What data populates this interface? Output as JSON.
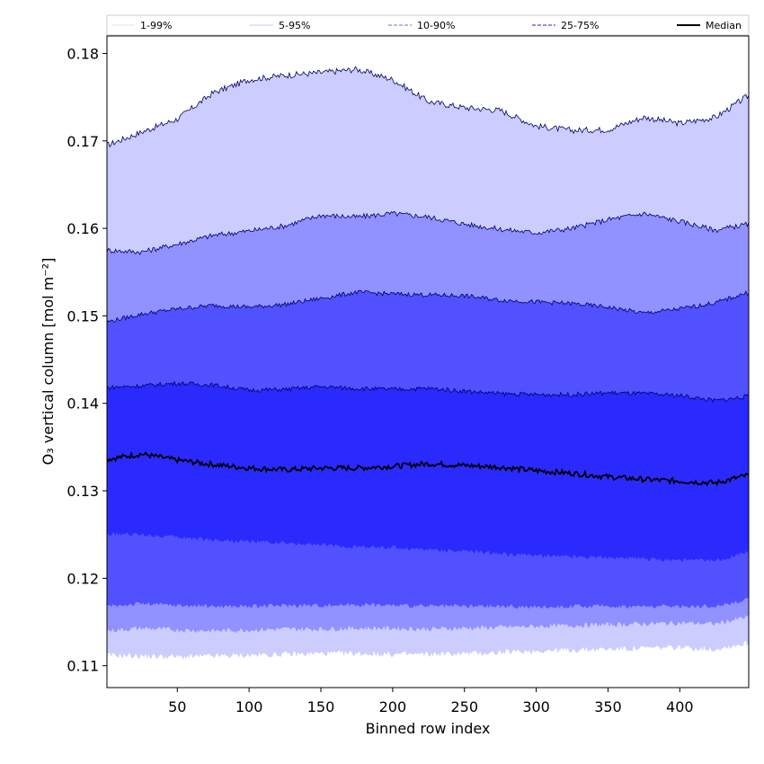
{
  "chart_data": {
    "type": "area",
    "title": "",
    "xlabel": "Binned row index",
    "ylabel": "O₃ vertical column [mol m⁻²]",
    "xlim": [
      1,
      448
    ],
    "ylim": [
      0.1075,
      0.182
    ],
    "xticks": [
      50,
      100,
      150,
      200,
      250,
      300,
      350,
      400
    ],
    "yticks": [
      0.11,
      0.12,
      0.13,
      0.14,
      0.15,
      0.16,
      0.17,
      0.18
    ],
    "grid": false,
    "legend_position": "top",
    "colors": {
      "band_1_99": "#ffffff",
      "band_5_95": "#ccccff",
      "band_10_90": "#9191ff",
      "band_25_75": "#5151ff",
      "band_center": "#2a2aff",
      "median_line": "#000000",
      "boundary_line": "#000066"
    },
    "legend": [
      {
        "name": "1-99%",
        "style": "thin-solid",
        "color": "#dddddd"
      },
      {
        "name": "5-95%",
        "style": "thin-solid",
        "color": "#b5b5e6"
      },
      {
        "name": "10-90%",
        "style": "dashed",
        "color": "#8a8af0"
      },
      {
        "name": "25-75%",
        "style": "dashed",
        "color": "#4b4bd8"
      },
      {
        "name": "Median",
        "style": "solid",
        "color": "#000000"
      }
    ],
    "x": [
      1,
      25,
      50,
      75,
      100,
      125,
      150,
      175,
      200,
      225,
      250,
      275,
      300,
      325,
      350,
      375,
      400,
      425,
      448
    ],
    "series": [
      {
        "name": "1-99%",
        "lower": [
          0.1112,
          0.1111,
          0.111,
          0.1111,
          0.1112,
          0.1113,
          0.1114,
          0.1114,
          0.1113,
          0.1113,
          0.1114,
          0.1115,
          0.1117,
          0.1118,
          0.1119,
          0.112,
          0.1121,
          0.1119,
          0.1126
        ],
        "upper": [
          0.1695,
          0.171,
          0.1725,
          0.1755,
          0.177,
          0.1775,
          0.1778,
          0.1782,
          0.177,
          0.1745,
          0.1738,
          0.1735,
          0.1717,
          0.1712,
          0.1713,
          0.1727,
          0.172,
          0.1727,
          0.1752
        ]
      },
      {
        "name": "5-95%",
        "lower": [
          0.114,
          0.1143,
          0.1141,
          0.114,
          0.1141,
          0.1142,
          0.1142,
          0.1143,
          0.1143,
          0.1142,
          0.1143,
          0.1144,
          0.1145,
          0.1146,
          0.1147,
          0.1148,
          0.1149,
          0.1148,
          0.1156
        ],
        "upper": [
          0.1575,
          0.1573,
          0.1582,
          0.1592,
          0.1597,
          0.1603,
          0.1615,
          0.1613,
          0.1617,
          0.1613,
          0.1605,
          0.1599,
          0.1595,
          0.16,
          0.161,
          0.1617,
          0.1608,
          0.1598,
          0.1605
        ]
      },
      {
        "name": "10-90%",
        "lower": [
          0.1168,
          0.1171,
          0.1169,
          0.1168,
          0.1168,
          0.1169,
          0.1169,
          0.117,
          0.1169,
          0.1168,
          0.1168,
          0.1168,
          0.1167,
          0.1168,
          0.1168,
          0.1168,
          0.1168,
          0.1168,
          0.1176
        ],
        "upper": [
          0.1493,
          0.1502,
          0.1508,
          0.1512,
          0.151,
          0.1513,
          0.152,
          0.1527,
          0.1525,
          0.1524,
          0.1523,
          0.1518,
          0.1516,
          0.1514,
          0.151,
          0.1503,
          0.1508,
          0.1515,
          0.1527
        ]
      },
      {
        "name": "25-75%",
        "lower": [
          0.125,
          0.125,
          0.1247,
          0.1244,
          0.1242,
          0.124,
          0.1238,
          0.1236,
          0.1235,
          0.1233,
          0.1231,
          0.1228,
          0.1226,
          0.1225,
          0.1224,
          0.1222,
          0.1221,
          0.122,
          0.123
        ],
        "upper": [
          0.1418,
          0.142,
          0.1423,
          0.1421,
          0.1415,
          0.1416,
          0.1419,
          0.1417,
          0.1416,
          0.1417,
          0.1414,
          0.1411,
          0.141,
          0.141,
          0.1412,
          0.1411,
          0.1409,
          0.1403,
          0.1408
        ]
      },
      {
        "name": "Median",
        "values": [
          0.1336,
          0.1342,
          0.1335,
          0.133,
          0.1326,
          0.1324,
          0.1326,
          0.1326,
          0.1328,
          0.1331,
          0.1329,
          0.1327,
          0.1323,
          0.132,
          0.1316,
          0.1313,
          0.1311,
          0.1309,
          0.1318
        ]
      }
    ]
  }
}
